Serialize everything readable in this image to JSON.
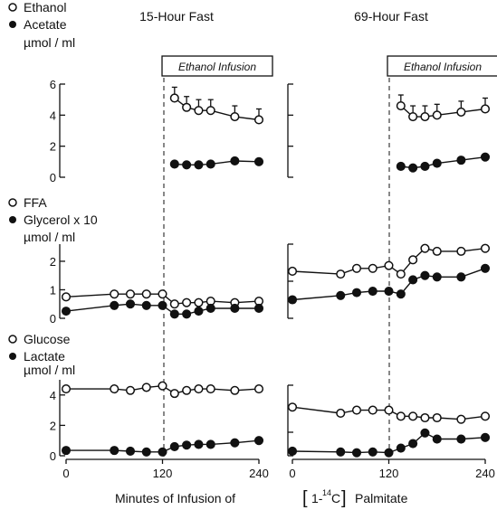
{
  "figure": {
    "x_label_parts": [
      "Minutes of Infusion of",
      "[",
      "1-",
      "14",
      "C",
      "]",
      "Palmitate"
    ]
  },
  "colors": {
    "ink": "#111111",
    "background": "#ffffff"
  },
  "chart_data": [
    {
      "type": "line",
      "title": "15-Hour Fast",
      "annotation": "Ethanol Infusion",
      "annotation_x": 120,
      "xticks": [
        0,
        120,
        240
      ],
      "xlim": [
        0,
        240
      ],
      "panels": [
        {
          "legend": [
            "Ethanol",
            "Acetate",
            "µmol / ml"
          ],
          "ylim": [
            0,
            6
          ],
          "yticks": [
            0,
            2,
            4,
            6
          ],
          "series": [
            {
              "name": "Ethanol",
              "marker": "open-circle",
              "error_bars": true,
              "x": [
                135,
                150,
                165,
                180,
                210,
                240
              ],
              "y": [
                5.1,
                4.5,
                4.3,
                4.3,
                3.9,
                3.7
              ]
            },
            {
              "name": "Acetate",
              "marker": "filled-circle",
              "x": [
                135,
                150,
                165,
                180,
                210,
                240
              ],
              "y": [
                0.85,
                0.8,
                0.8,
                0.85,
                1.05,
                1.0
              ]
            }
          ]
        },
        {
          "legend": [
            "FFA",
            "Glycerol x 10",
            "µmol / ml"
          ],
          "ylim": [
            0,
            2.6
          ],
          "yticks": [
            0,
            1,
            2
          ],
          "series": [
            {
              "name": "FFA",
              "marker": "open-circle",
              "x": [
                0,
                60,
                80,
                100,
                120,
                135,
                150,
                165,
                180,
                210,
                240
              ],
              "y": [
                0.75,
                0.85,
                0.85,
                0.85,
                0.85,
                0.5,
                0.55,
                0.55,
                0.6,
                0.55,
                0.6
              ]
            },
            {
              "name": "Glycerol x 10",
              "marker": "filled-circle",
              "x": [
                0,
                60,
                80,
                100,
                120,
                135,
                150,
                165,
                180,
                210,
                240
              ],
              "y": [
                0.25,
                0.45,
                0.5,
                0.45,
                0.45,
                0.15,
                0.15,
                0.25,
                0.35,
                0.35,
                0.35
              ]
            }
          ]
        },
        {
          "legend": [
            "Glucose",
            "Lactate",
            "µmol / ml"
          ],
          "ylim": [
            0,
            5
          ],
          "yticks": [
            0,
            2,
            4
          ],
          "series": [
            {
              "name": "Glucose",
              "marker": "open-circle",
              "x": [
                0,
                60,
                80,
                100,
                120,
                135,
                150,
                165,
                180,
                210,
                240
              ],
              "y": [
                4.4,
                4.4,
                4.3,
                4.5,
                4.6,
                4.1,
                4.3,
                4.4,
                4.4,
                4.3,
                4.4
              ]
            },
            {
              "name": "Lactate",
              "marker": "filled-circle",
              "x": [
                0,
                60,
                80,
                100,
                120,
                135,
                150,
                165,
                180,
                210,
                240
              ],
              "y": [
                0.35,
                0.35,
                0.3,
                0.25,
                0.25,
                0.6,
                0.7,
                0.75,
                0.75,
                0.85,
                1.0
              ]
            }
          ]
        }
      ]
    },
    {
      "type": "line",
      "title": "69-Hour Fast",
      "annotation": "Ethanol Infusion",
      "annotation_x": 120,
      "xticks": [
        0,
        120,
        240
      ],
      "xlim": [
        0,
        240
      ],
      "panels": [
        {
          "ylim": [
            0,
            6
          ],
          "series": [
            {
              "name": "Ethanol",
              "marker": "open-circle",
              "error_bars": true,
              "x": [
                135,
                150,
                165,
                180,
                210,
                240
              ],
              "y": [
                4.6,
                3.9,
                3.9,
                4.0,
                4.2,
                4.4
              ]
            },
            {
              "name": "Acetate",
              "marker": "filled-circle",
              "x": [
                135,
                150,
                165,
                180,
                210,
                240
              ],
              "y": [
                0.7,
                0.6,
                0.7,
                0.9,
                1.1,
                1.3
              ]
            }
          ]
        },
        {
          "ylim": [
            0,
            2.6
          ],
          "series": [
            {
              "name": "FFA",
              "marker": "open-circle",
              "x": [
                0,
                60,
                80,
                100,
                120,
                135,
                150,
                165,
                180,
                210,
                240
              ],
              "y": [
                1.65,
                1.55,
                1.75,
                1.75,
                1.85,
                1.55,
                2.05,
                2.45,
                2.35,
                2.35,
                2.45
              ]
            },
            {
              "name": "Glycerol x 10",
              "marker": "filled-circle",
              "x": [
                0,
                60,
                80,
                100,
                120,
                135,
                150,
                165,
                180,
                210,
                240
              ],
              "y": [
                0.65,
                0.8,
                0.9,
                0.95,
                0.95,
                0.85,
                1.35,
                1.5,
                1.45,
                1.45,
                1.75
              ]
            }
          ]
        },
        {
          "ylim": [
            0,
            5
          ],
          "series": [
            {
              "name": "Glucose",
              "marker": "open-circle",
              "x": [
                0,
                60,
                80,
                100,
                120,
                135,
                150,
                165,
                180,
                210,
                240
              ],
              "y": [
                3.2,
                2.8,
                3.0,
                3.0,
                3.0,
                2.6,
                2.6,
                2.5,
                2.5,
                2.4,
                2.6
              ]
            },
            {
              "name": "Lactate",
              "marker": "filled-circle",
              "x": [
                0,
                60,
                80,
                100,
                120,
                135,
                150,
                165,
                180,
                210,
                240
              ],
              "y": [
                0.3,
                0.25,
                0.2,
                0.25,
                0.2,
                0.5,
                0.8,
                1.5,
                1.1,
                1.1,
                1.2
              ]
            }
          ]
        }
      ]
    }
  ]
}
